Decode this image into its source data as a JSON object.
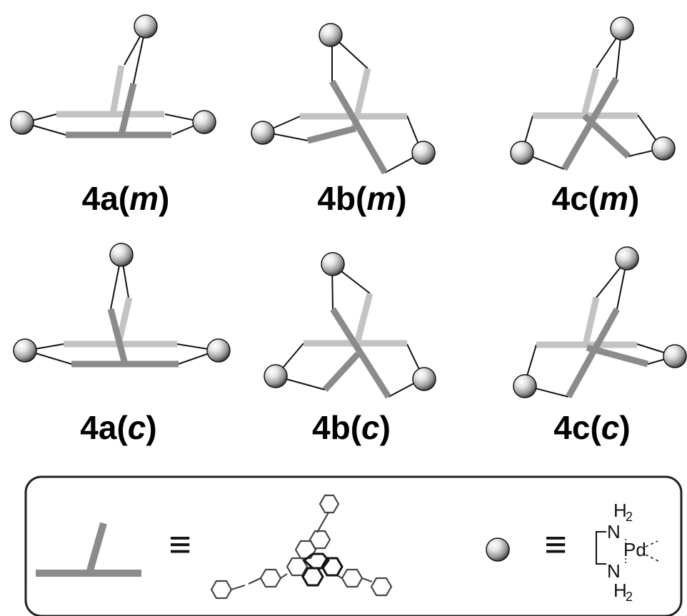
{
  "labels": {
    "top": [
      {
        "prefix": "4a(",
        "italic": "m",
        "suffix": ")"
      },
      {
        "prefix": "4b(",
        "italic": "m",
        "suffix": ")"
      },
      {
        "prefix": "4c(",
        "italic": "m",
        "suffix": ")"
      }
    ],
    "bottom": [
      {
        "prefix": "4a(",
        "italic": "c",
        "suffix": ")"
      },
      {
        "prefix": "4b(",
        "italic": "c",
        "suffix": ")"
      },
      {
        "prefix": "4c(",
        "italic": "c",
        "suffix": ")"
      }
    ]
  },
  "legend": {
    "equiv_symbol": "≡",
    "pd_complex": {
      "top_h": "H",
      "top_sub": "2",
      "n_upper": "N",
      "pd": "Pd",
      "n_lower": "N",
      "bottom_h": "H",
      "bottom_sub": "2"
    }
  },
  "colors": {
    "light_gray": "#c3c3c3",
    "dark_gray": "#8b8b8b",
    "sphere_light": "#f4f4f4",
    "sphere_dark": "#5f5f5f",
    "frame": "#222222"
  }
}
